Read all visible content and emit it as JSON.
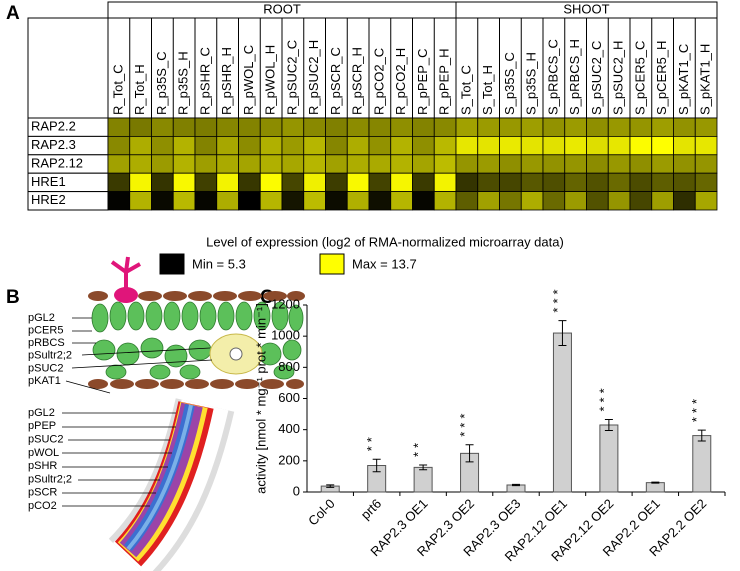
{
  "panel_labels": [
    "A",
    "B",
    "C"
  ],
  "leaf_labels": [
    "pGL2",
    "pCER5",
    "pRBCS",
    "pSultr2;2",
    "pSUC2",
    "pKAT1"
  ],
  "root_labels": [
    "pGL2",
    "pPEP",
    "pSUC2",
    "pWOL",
    "pSHR",
    "pSultr2;2",
    "pSCR",
    "pCO2"
  ],
  "chart_data": [
    {
      "type": "heatmap",
      "column_groups": [
        "ROOT",
        "SHOOT"
      ],
      "x": [
        "R_Tot_C",
        "R_Tot_H",
        "R_p35S_C",
        "R_p35S_H",
        "R_pSHR_C",
        "R_pSHR_H",
        "R_pWOL_C",
        "R_pWOL_H",
        "R_pSUC2_C",
        "R_pSUC2_H",
        "R_pSCR_C",
        "R_pSCR_H",
        "R_pCO2_C",
        "R_pCO2_H",
        "R_pPEP_C",
        "R_pPEP_H",
        "S_Tot_C",
        "S_Tot_H",
        "S_p35S_C",
        "S_p35S_H",
        "S_pRBCS_C",
        "S_pRBCS_H",
        "S_pSUC2_C",
        "S_pSUC2_H",
        "S_pCER5_C",
        "S_pCER5_H",
        "S_pKAT1_C",
        "S_pKAT1_H"
      ],
      "y": [
        "RAP2.2",
        "RAP2.3",
        "RAP2.12",
        "HRE1",
        "HRE2"
      ],
      "values": [
        [
          9.6,
          9.3,
          9.8,
          9.5,
          9.4,
          9.7,
          9.6,
          9.9,
          10.2,
          9.8,
          9.5,
          9.9,
          9.7,
          10.0,
          9.6,
          9.8,
          10.6,
          10.4,
          10.3,
          10.5,
          10.1,
          10.4,
          10.0,
          10.3,
          10.2,
          10.5,
          10.1,
          10.3
        ],
        [
          9.8,
          11.0,
          10.0,
          11.2,
          9.6,
          10.8,
          9.9,
          11.1,
          10.4,
          11.3,
          9.7,
          11.0,
          10.1,
          11.2,
          10.0,
          11.4,
          12.9,
          12.8,
          13.0,
          12.8,
          12.7,
          13.0,
          12.6,
          12.9,
          13.6,
          13.7,
          12.8,
          12.9
        ],
        [
          10.6,
          11.0,
          10.4,
          11.2,
          10.5,
          10.9,
          10.7,
          11.1,
          10.8,
          11.3,
          10.6,
          11.0,
          10.9,
          11.2,
          10.7,
          11.5,
          10.2,
          10.4,
          10.0,
          10.3,
          10.1,
          10.2,
          9.9,
          10.3,
          10.0,
          10.4,
          10.1,
          10.2
        ],
        [
          7.2,
          13.4,
          7.0,
          13.5,
          7.4,
          13.3,
          7.1,
          13.6,
          7.6,
          13.2,
          7.3,
          13.5,
          7.5,
          13.4,
          7.2,
          13.3,
          7.0,
          7.8,
          7.6,
          8.2,
          7.9,
          8.6,
          8.0,
          8.8,
          7.8,
          8.4,
          8.1,
          8.7
        ],
        [
          5.4,
          11.2,
          5.6,
          11.4,
          5.5,
          11.0,
          5.3,
          11.3,
          6.0,
          11.5,
          5.7,
          11.1,
          5.8,
          11.3,
          5.5,
          11.2,
          8.4,
          10.6,
          9.2,
          11.0,
          8.8,
          10.4,
          8.0,
          10.2,
          7.6,
          10.5,
          6.8,
          10.8
        ]
      ],
      "colorbar_title": "Level of expression (log2 of RMA-normalized microarray data)",
      "zlim": [
        5.3,
        13.7
      ],
      "zlim_labels": [
        "Min = 5.3",
        "Max = 13.7"
      ],
      "colors": [
        "#000000",
        "#ffff00"
      ]
    },
    {
      "type": "bar",
      "categories": [
        "Col-0",
        "prt6",
        "RAP2.3 OE1",
        "RAP2.3 OE2",
        "RAP2.3 OE3",
        "RAP2.12 OE1",
        "RAP2.12 OE2",
        "RAP2.2 OE1",
        "RAP2.2 OE2"
      ],
      "values": [
        38,
        170,
        158,
        248,
        45,
        1020,
        430,
        60,
        362
      ],
      "errors": [
        8,
        40,
        15,
        55,
        4,
        80,
        35,
        3,
        35
      ],
      "annotations": [
        null,
        "**",
        "**",
        "***",
        null,
        "***",
        "***",
        null,
        "***"
      ],
      "color": "#d0d0d0",
      "y_label": "activity [nmol * mg⁻¹ prot * min⁻¹]",
      "ylim": [
        0,
        1200
      ],
      "yticks": [
        0,
        200,
        400,
        600,
        800,
        1000,
        1200
      ]
    }
  ]
}
